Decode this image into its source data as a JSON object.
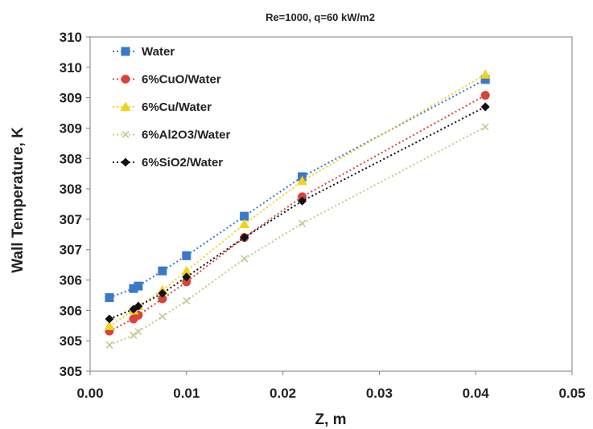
{
  "chart_data": {
    "type": "scatter",
    "title": "Re=1000, q=60 kW/m2",
    "xlabel": "Z, m",
    "ylabel": "Wall Temperature, K",
    "xlim": [
      0.0,
      0.05
    ],
    "ylim": [
      304.5,
      310.0
    ],
    "x_ticks": [
      "0.00",
      "0.01",
      "0.02",
      "0.03",
      "0.04",
      "0.05"
    ],
    "x_tick_values": [
      0.0,
      0.01,
      0.02,
      0.03,
      0.04,
      0.05
    ],
    "y_ticks": [
      "305",
      "305",
      "306",
      "306",
      "307",
      "307",
      "308",
      "308",
      "309",
      "309",
      "310",
      "310"
    ],
    "y_tick_values": [
      304.5,
      305.0,
      305.5,
      306.0,
      306.5,
      307.0,
      307.5,
      308.0,
      308.5,
      309.0,
      309.5,
      310.0
    ],
    "grid": false,
    "legend_position": "top-left",
    "series": [
      {
        "name": "Water",
        "color": "#3a79c9",
        "marker": "square",
        "x": [
          0.002,
          0.0045,
          0.005,
          0.0075,
          0.01,
          0.016,
          0.022,
          0.041
        ],
        "y": [
          305.71,
          305.86,
          305.9,
          306.15,
          306.4,
          307.05,
          307.7,
          309.3
        ]
      },
      {
        "name": "6%CuO/Water",
        "color": "#d9433b",
        "marker": "circle",
        "x": [
          0.002,
          0.0045,
          0.005,
          0.0075,
          0.01,
          0.016,
          0.022,
          0.041
        ],
        "y": [
          305.16,
          305.36,
          305.42,
          305.69,
          305.97,
          306.7,
          307.37,
          309.04
        ]
      },
      {
        "name": "6%Cu/Water",
        "color": "#f2d21a",
        "marker": "triangle",
        "x": [
          0.002,
          0.0045,
          0.005,
          0.0075,
          0.01,
          0.016,
          0.022,
          0.041
        ],
        "y": [
          305.24,
          305.5,
          305.57,
          305.83,
          306.15,
          306.92,
          307.63,
          309.38
        ]
      },
      {
        "name": "6%Al2O3/Water",
        "color": "#c5c98a",
        "marker": "x",
        "x": [
          0.002,
          0.0045,
          0.005,
          0.0075,
          0.01,
          0.016,
          0.022,
          0.041
        ],
        "y": [
          304.93,
          305.09,
          305.15,
          305.4,
          305.66,
          306.35,
          306.93,
          308.52
        ]
      },
      {
        "name": "6%SiO2/Water",
        "color": "#111111",
        "marker": "diamond",
        "x": [
          0.002,
          0.0045,
          0.005,
          0.0075,
          0.01,
          0.016,
          0.022,
          0.041
        ],
        "y": [
          305.36,
          305.52,
          305.57,
          305.78,
          306.05,
          306.7,
          307.3,
          308.85
        ]
      }
    ]
  }
}
